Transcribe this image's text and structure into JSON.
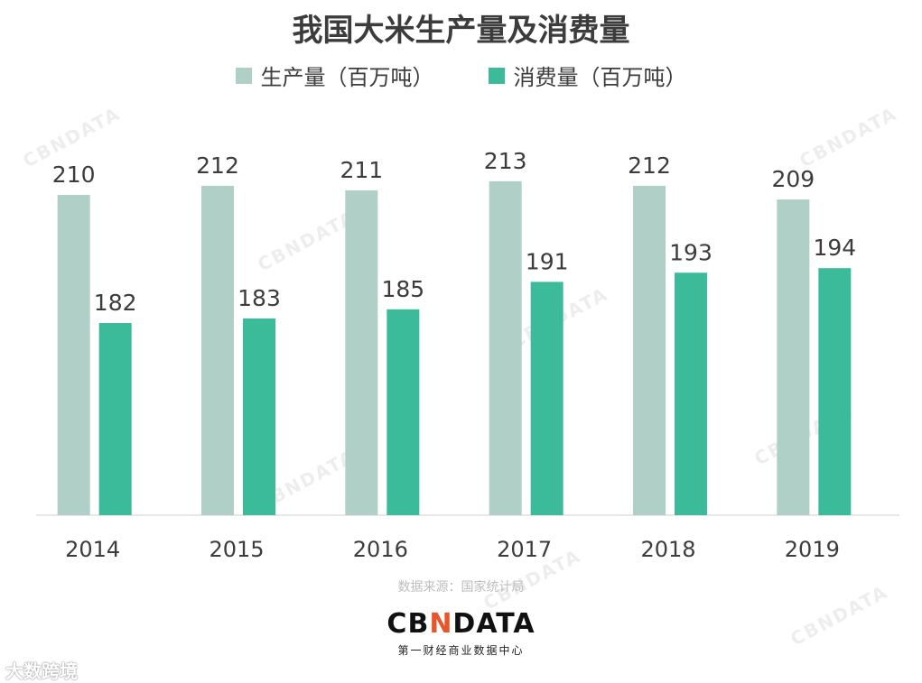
{
  "title": "我国大米生产量及消费量",
  "legend": [
    {
      "label": "生产量（百万吨）",
      "color": "#b0cfc7"
    },
    {
      "label": "消费量（百万吨）",
      "color": "#3bbb99"
    }
  ],
  "source": "数据来源：国家统计局",
  "brand": {
    "logo_pre": "CB",
    "logo_x": "N",
    "logo_post": "DATA",
    "subtitle": "第一财经商业数据中心"
  },
  "watermark_text": "CBNDATA",
  "bottom_left": "大数跨境",
  "chart_data": {
    "type": "bar",
    "categories": [
      "2014",
      "2015",
      "2016",
      "2017",
      "2018",
      "2019"
    ],
    "series": [
      {
        "name": "生产量（百万吨）",
        "values": [
          210,
          212,
          211,
          213,
          212,
          209
        ],
        "color": "#b0cfc7"
      },
      {
        "name": "消费量（百万吨）",
        "values": [
          182,
          183,
          185,
          191,
          193,
          194
        ],
        "color": "#3bbb99"
      }
    ],
    "title": "我国大米生产量及消费量",
    "xlabel": "",
    "ylabel": "",
    "data_labels": true,
    "grid": false,
    "legend_position": "top"
  }
}
